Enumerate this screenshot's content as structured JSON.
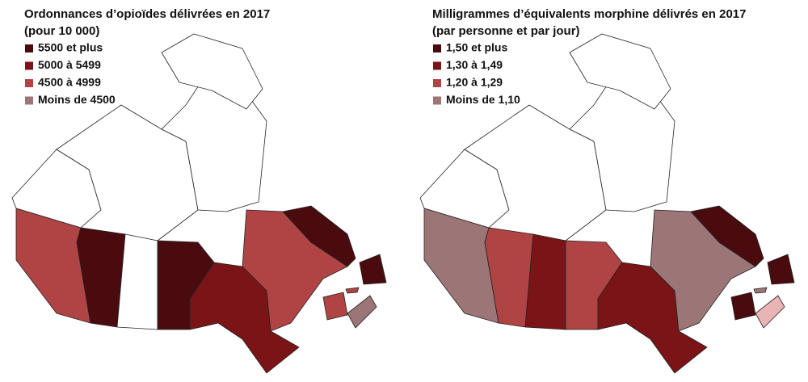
{
  "maps": [
    {
      "title": "Ordonnances d’opioïdes délivrées en 2017",
      "subtitle": "(pour 10 000)",
      "legend": [
        {
          "label": "5500 et plus",
          "color": "#4a0b0f"
        },
        {
          "label": "5000 à 5499",
          "color": "#7a1416"
        },
        {
          "label": "4500 à 4999",
          "color": "#b04444"
        },
        {
          "label": "Moins de 4500",
          "color": "#9c7577"
        }
      ]
    },
    {
      "title": "Milligrammes d’équivalents morphine délivrés en 2017",
      "subtitle": "(par personne et par jour)",
      "legend": [
        {
          "label": "1,50 et plus",
          "color": "#4a0b0f"
        },
        {
          "label": "1,30 à 1,49",
          "color": "#7a1416"
        },
        {
          "label": "1,20 à 1,29",
          "color": "#b04444"
        },
        {
          "label": "Moins de 1,10",
          "color": "#9c7577"
        }
      ]
    }
  ]
}
